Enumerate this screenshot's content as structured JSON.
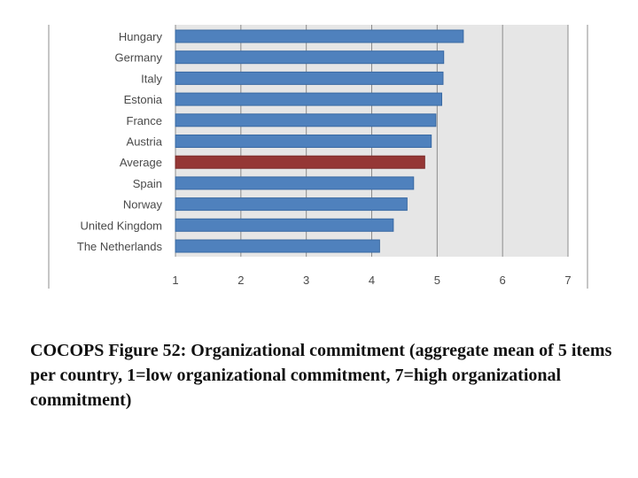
{
  "chart_data": {
    "type": "bar",
    "orientation": "horizontal",
    "categories": [
      "Hungary",
      "Germany",
      "Italy",
      "Estonia",
      "France",
      "Austria",
      "Average",
      "Spain",
      "Norway",
      "United Kingdom",
      "The Netherlands"
    ],
    "values": [
      5.4,
      5.1,
      5.09,
      5.07,
      4.98,
      4.91,
      4.81,
      4.64,
      4.54,
      4.33,
      4.12
    ],
    "highlight_category": "Average",
    "xlim": [
      1,
      7
    ],
    "xticks": [
      "1",
      "2",
      "3",
      "4",
      "5",
      "6",
      "7"
    ],
    "grid": "vertical",
    "colors": {
      "bar": "#4f81bd",
      "bar_border": "#3a6aa3",
      "highlight": "#953735",
      "highlight_border": "#7a2a29",
      "plot_background": "#e6e6e6",
      "gridline": "#8c8c8c"
    }
  },
  "caption": "COCOPS Figure 52: Organizational commitment (aggregate mean of 5 items per country, 1=low organizational commitment, 7=high organizational commitment)"
}
